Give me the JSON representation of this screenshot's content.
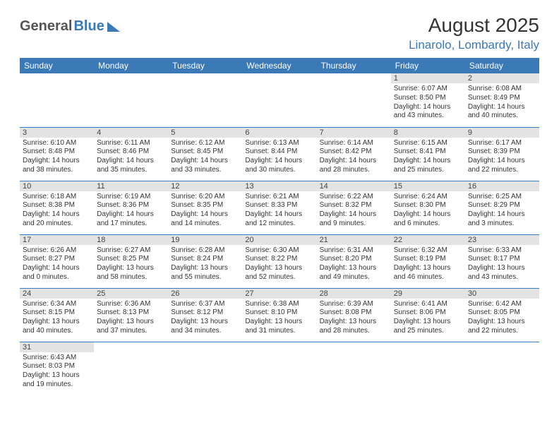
{
  "header": {
    "logo_part1": "General",
    "logo_part2": "Blue",
    "month_title": "August 2025",
    "location": "Linarolo, Lombardy, Italy"
  },
  "styling": {
    "accent_color": "#3b79b7",
    "daynum_bg": "#e3e3e3",
    "header_text_color": "#ffffff",
    "body_text_color": "#333333",
    "logo_gray": "#555555",
    "page_bg": "#ffffff",
    "title_fontsize": 28,
    "location_fontsize": 17,
    "weekday_fontsize": 12,
    "daynum_fontsize": 11,
    "cell_fontsize": 10
  },
  "weekdays": [
    "Sunday",
    "Monday",
    "Tuesday",
    "Wednesday",
    "Thursday",
    "Friday",
    "Saturday"
  ],
  "weeks": [
    [
      null,
      null,
      null,
      null,
      null,
      {
        "n": "1",
        "sunrise": "Sunrise: 6:07 AM",
        "sunset": "Sunset: 8:50 PM",
        "daylight": "Daylight: 14 hours and 43 minutes."
      },
      {
        "n": "2",
        "sunrise": "Sunrise: 6:08 AM",
        "sunset": "Sunset: 8:49 PM",
        "daylight": "Daylight: 14 hours and 40 minutes."
      }
    ],
    [
      {
        "n": "3",
        "sunrise": "Sunrise: 6:10 AM",
        "sunset": "Sunset: 8:48 PM",
        "daylight": "Daylight: 14 hours and 38 minutes."
      },
      {
        "n": "4",
        "sunrise": "Sunrise: 6:11 AM",
        "sunset": "Sunset: 8:46 PM",
        "daylight": "Daylight: 14 hours and 35 minutes."
      },
      {
        "n": "5",
        "sunrise": "Sunrise: 6:12 AM",
        "sunset": "Sunset: 8:45 PM",
        "daylight": "Daylight: 14 hours and 33 minutes."
      },
      {
        "n": "6",
        "sunrise": "Sunrise: 6:13 AM",
        "sunset": "Sunset: 8:44 PM",
        "daylight": "Daylight: 14 hours and 30 minutes."
      },
      {
        "n": "7",
        "sunrise": "Sunrise: 6:14 AM",
        "sunset": "Sunset: 8:42 PM",
        "daylight": "Daylight: 14 hours and 28 minutes."
      },
      {
        "n": "8",
        "sunrise": "Sunrise: 6:15 AM",
        "sunset": "Sunset: 8:41 PM",
        "daylight": "Daylight: 14 hours and 25 minutes."
      },
      {
        "n": "9",
        "sunrise": "Sunrise: 6:17 AM",
        "sunset": "Sunset: 8:39 PM",
        "daylight": "Daylight: 14 hours and 22 minutes."
      }
    ],
    [
      {
        "n": "10",
        "sunrise": "Sunrise: 6:18 AM",
        "sunset": "Sunset: 8:38 PM",
        "daylight": "Daylight: 14 hours and 20 minutes."
      },
      {
        "n": "11",
        "sunrise": "Sunrise: 6:19 AM",
        "sunset": "Sunset: 8:36 PM",
        "daylight": "Daylight: 14 hours and 17 minutes."
      },
      {
        "n": "12",
        "sunrise": "Sunrise: 6:20 AM",
        "sunset": "Sunset: 8:35 PM",
        "daylight": "Daylight: 14 hours and 14 minutes."
      },
      {
        "n": "13",
        "sunrise": "Sunrise: 6:21 AM",
        "sunset": "Sunset: 8:33 PM",
        "daylight": "Daylight: 14 hours and 12 minutes."
      },
      {
        "n": "14",
        "sunrise": "Sunrise: 6:22 AM",
        "sunset": "Sunset: 8:32 PM",
        "daylight": "Daylight: 14 hours and 9 minutes."
      },
      {
        "n": "15",
        "sunrise": "Sunrise: 6:24 AM",
        "sunset": "Sunset: 8:30 PM",
        "daylight": "Daylight: 14 hours and 6 minutes."
      },
      {
        "n": "16",
        "sunrise": "Sunrise: 6:25 AM",
        "sunset": "Sunset: 8:29 PM",
        "daylight": "Daylight: 14 hours and 3 minutes."
      }
    ],
    [
      {
        "n": "17",
        "sunrise": "Sunrise: 6:26 AM",
        "sunset": "Sunset: 8:27 PM",
        "daylight": "Daylight: 14 hours and 0 minutes."
      },
      {
        "n": "18",
        "sunrise": "Sunrise: 6:27 AM",
        "sunset": "Sunset: 8:25 PM",
        "daylight": "Daylight: 13 hours and 58 minutes."
      },
      {
        "n": "19",
        "sunrise": "Sunrise: 6:28 AM",
        "sunset": "Sunset: 8:24 PM",
        "daylight": "Daylight: 13 hours and 55 minutes."
      },
      {
        "n": "20",
        "sunrise": "Sunrise: 6:30 AM",
        "sunset": "Sunset: 8:22 PM",
        "daylight": "Daylight: 13 hours and 52 minutes."
      },
      {
        "n": "21",
        "sunrise": "Sunrise: 6:31 AM",
        "sunset": "Sunset: 8:20 PM",
        "daylight": "Daylight: 13 hours and 49 minutes."
      },
      {
        "n": "22",
        "sunrise": "Sunrise: 6:32 AM",
        "sunset": "Sunset: 8:19 PM",
        "daylight": "Daylight: 13 hours and 46 minutes."
      },
      {
        "n": "23",
        "sunrise": "Sunrise: 6:33 AM",
        "sunset": "Sunset: 8:17 PM",
        "daylight": "Daylight: 13 hours and 43 minutes."
      }
    ],
    [
      {
        "n": "24",
        "sunrise": "Sunrise: 6:34 AM",
        "sunset": "Sunset: 8:15 PM",
        "daylight": "Daylight: 13 hours and 40 minutes."
      },
      {
        "n": "25",
        "sunrise": "Sunrise: 6:36 AM",
        "sunset": "Sunset: 8:13 PM",
        "daylight": "Daylight: 13 hours and 37 minutes."
      },
      {
        "n": "26",
        "sunrise": "Sunrise: 6:37 AM",
        "sunset": "Sunset: 8:12 PM",
        "daylight": "Daylight: 13 hours and 34 minutes."
      },
      {
        "n": "27",
        "sunrise": "Sunrise: 6:38 AM",
        "sunset": "Sunset: 8:10 PM",
        "daylight": "Daylight: 13 hours and 31 minutes."
      },
      {
        "n": "28",
        "sunrise": "Sunrise: 6:39 AM",
        "sunset": "Sunset: 8:08 PM",
        "daylight": "Daylight: 13 hours and 28 minutes."
      },
      {
        "n": "29",
        "sunrise": "Sunrise: 6:41 AM",
        "sunset": "Sunset: 8:06 PM",
        "daylight": "Daylight: 13 hours and 25 minutes."
      },
      {
        "n": "30",
        "sunrise": "Sunrise: 6:42 AM",
        "sunset": "Sunset: 8:05 PM",
        "daylight": "Daylight: 13 hours and 22 minutes."
      }
    ],
    [
      {
        "n": "31",
        "sunrise": "Sunrise: 6:43 AM",
        "sunset": "Sunset: 8:03 PM",
        "daylight": "Daylight: 13 hours and 19 minutes."
      },
      null,
      null,
      null,
      null,
      null,
      null
    ]
  ]
}
